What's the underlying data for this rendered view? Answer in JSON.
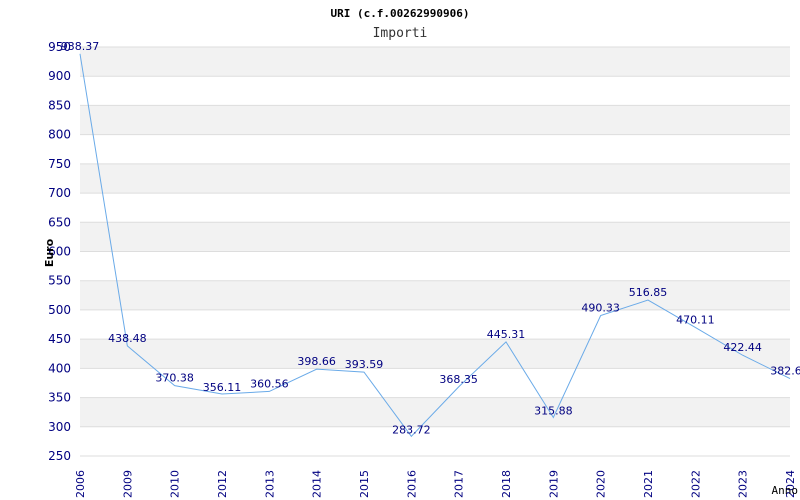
{
  "chart_data": {
    "type": "line",
    "title": "URI (c.f.00262990906)",
    "subtitle": "Importi",
    "xlabel": "Anno",
    "ylabel": "Euro",
    "ylim": [
      250,
      950
    ],
    "yticks": [
      250,
      300,
      350,
      400,
      450,
      500,
      550,
      600,
      650,
      700,
      750,
      800,
      850,
      900,
      950
    ],
    "grid": true,
    "categories": [
      "2006",
      "2009",
      "2010",
      "2012",
      "2013",
      "2014",
      "2015",
      "2016",
      "2017",
      "2018",
      "2019",
      "2020",
      "2021",
      "2022",
      "2023",
      "2024"
    ],
    "values": [
      938.37,
      438.48,
      370.38,
      356.11,
      360.56,
      398.66,
      393.59,
      283.72,
      368.35,
      445.31,
      315.88,
      490.33,
      516.85,
      470.11,
      422.44,
      382.6
    ],
    "data_labels": [
      "938.37",
      "438.48",
      "370.38",
      "356.11",
      "360.56",
      "398.66",
      "393.59",
      "283.72",
      "368.35",
      "445.31",
      "315.88",
      "490.33",
      "516.85",
      "470.11",
      "422.44",
      "382.6"
    ],
    "colors": {
      "line": "#6aaae8",
      "text": "#000080",
      "band": "#f2f2f2",
      "gridline": "#dddddd"
    }
  }
}
